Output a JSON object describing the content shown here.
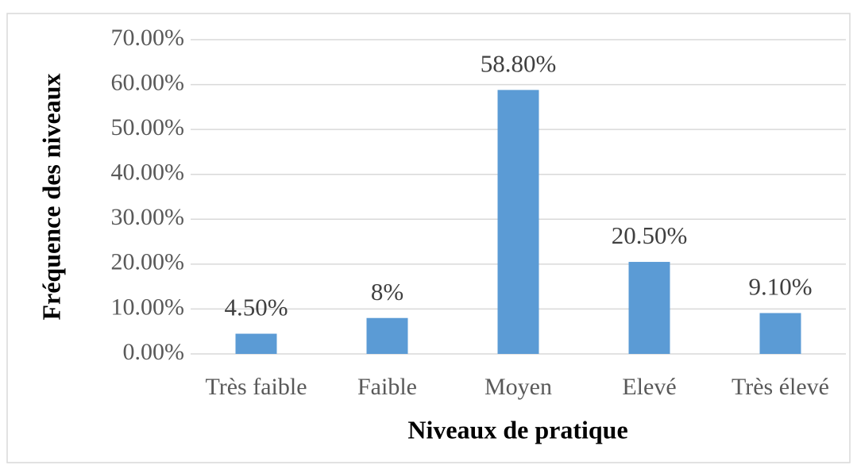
{
  "chart_data": {
    "type": "bar",
    "x_label": "Niveaux de pratique",
    "y_label": "Fréquence des niveaux",
    "categories": [
      "Très faible",
      "Faible",
      "Moyen",
      "Elevé",
      "Très élevé"
    ],
    "values": [
      4.5,
      8,
      58.8,
      20.5,
      9.1
    ],
    "value_labels": [
      "4.50%",
      "8%",
      "58.80%",
      "20.50%",
      "9.10%"
    ],
    "color": "#5b9bd5",
    "ylim": [
      0,
      70
    ],
    "yticks": [
      {
        "value": 0,
        "label": "0.00%"
      },
      {
        "value": 10,
        "label": "10.00%"
      },
      {
        "value": 20,
        "label": "20.00%"
      },
      {
        "value": 30,
        "label": "30.00%"
      },
      {
        "value": 40,
        "label": "40.00%"
      },
      {
        "value": 50,
        "label": "50.00%"
      },
      {
        "value": 60,
        "label": "60.00%"
      },
      {
        "value": 70,
        "label": "70.00%"
      }
    ],
    "grid": true
  }
}
